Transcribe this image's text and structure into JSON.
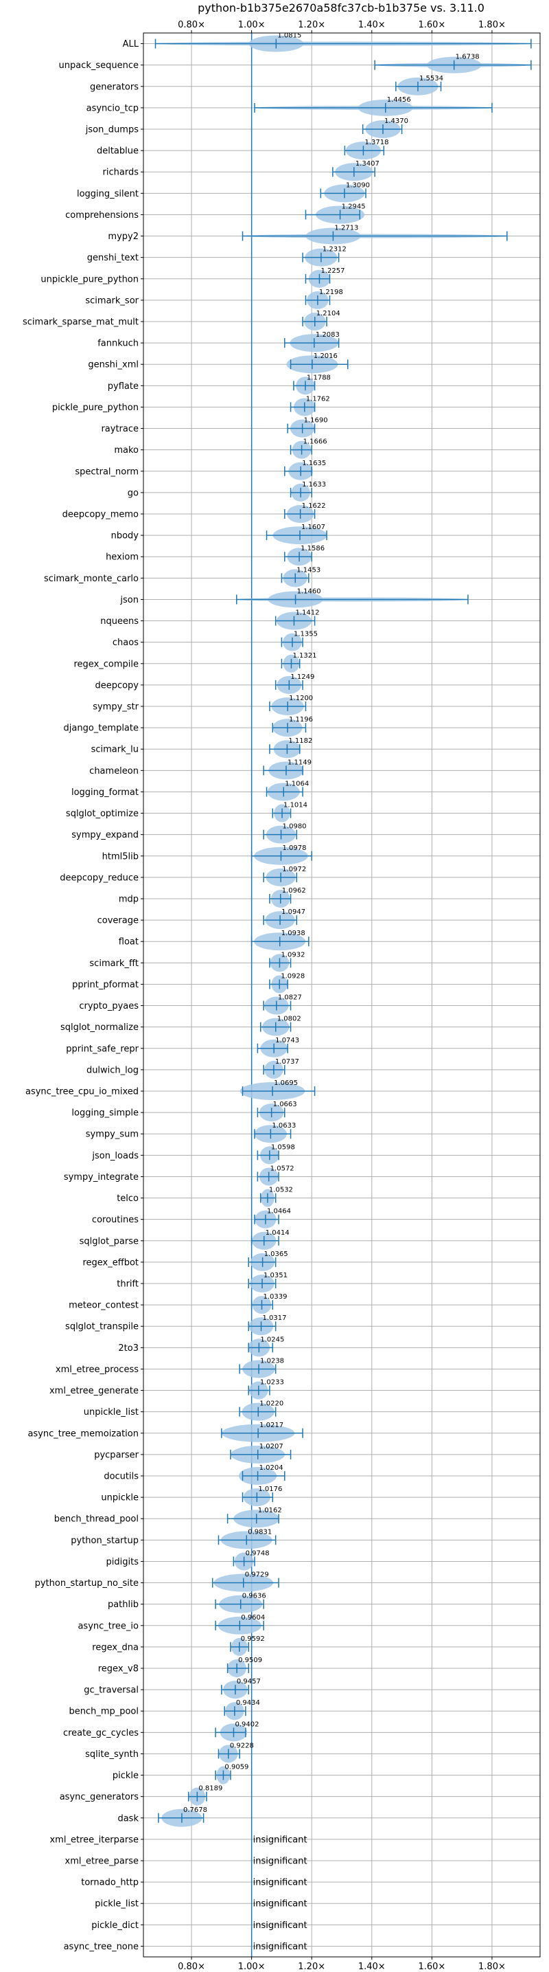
{
  "chart_data": {
    "type": "violin",
    "title": "python-b1b375e2670a58fc37cb-b1b375e vs. 3.11.0",
    "xlabel": "",
    "ylabel": "",
    "xlim": [
      0.64,
      1.96
    ],
    "x_ticks": [
      0.8,
      1.0,
      1.2,
      1.4,
      1.6,
      1.8
    ],
    "x_tick_labels": [
      "0.80×",
      "1.00×",
      "1.20×",
      "1.40×",
      "1.60×",
      "1.80×"
    ],
    "reference_line": 1.0,
    "grid": true,
    "colors": {
      "violin": "#a6c8e6",
      "line": "#1f77b4"
    },
    "insignificant_label": "insignificant",
    "benchmarks": [
      {
        "name": "ALL",
        "value": 1.0815,
        "label": "1.0815",
        "min": 0.68,
        "max": 1.93
      },
      {
        "name": "unpack_sequence",
        "value": 1.6738,
        "label": "1.6738",
        "min": 1.41,
        "max": 1.93
      },
      {
        "name": "generators",
        "value": 1.5534,
        "label": "1.5534",
        "min": 1.48,
        "max": 1.63
      },
      {
        "name": "asyncio_tcp",
        "value": 1.4456,
        "label": "1.4456",
        "min": 1.01,
        "max": 1.8
      },
      {
        "name": "json_dumps",
        "value": 1.437,
        "label": "1.4370",
        "min": 1.37,
        "max": 1.5
      },
      {
        "name": "deltablue",
        "value": 1.3718,
        "label": "1.3718",
        "min": 1.31,
        "max": 1.44
      },
      {
        "name": "richards",
        "value": 1.3407,
        "label": "1.3407",
        "min": 1.27,
        "max": 1.41
      },
      {
        "name": "logging_silent",
        "value": 1.309,
        "label": "1.3090",
        "min": 1.23,
        "max": 1.38
      },
      {
        "name": "comprehensions",
        "value": 1.2945,
        "label": "1.2945",
        "min": 1.18,
        "max": 1.36
      },
      {
        "name": "mypy2",
        "value": 1.2713,
        "label": "1.2713",
        "min": 0.97,
        "max": 1.85
      },
      {
        "name": "genshi_text",
        "value": 1.2312,
        "label": "1.2312",
        "min": 1.17,
        "max": 1.29
      },
      {
        "name": "unpickle_pure_python",
        "value": 1.2257,
        "label": "1.2257",
        "min": 1.18,
        "max": 1.26
      },
      {
        "name": "scimark_sor",
        "value": 1.2198,
        "label": "1.2198",
        "min": 1.18,
        "max": 1.26
      },
      {
        "name": "scimark_sparse_mat_mult",
        "value": 1.2104,
        "label": "1.2104",
        "min": 1.17,
        "max": 1.25
      },
      {
        "name": "fannkuch",
        "value": 1.2083,
        "label": "1.2083",
        "min": 1.11,
        "max": 1.29
      },
      {
        "name": "genshi_xml",
        "value": 1.2016,
        "label": "1.2016",
        "min": 1.13,
        "max": 1.32
      },
      {
        "name": "pyflate",
        "value": 1.1788,
        "label": "1.1788",
        "min": 1.14,
        "max": 1.21
      },
      {
        "name": "pickle_pure_python",
        "value": 1.1762,
        "label": "1.1762",
        "min": 1.13,
        "max": 1.21
      },
      {
        "name": "raytrace",
        "value": 1.169,
        "label": "1.1690",
        "min": 1.12,
        "max": 1.21
      },
      {
        "name": "mako",
        "value": 1.1666,
        "label": "1.1666",
        "min": 1.13,
        "max": 1.2
      },
      {
        "name": "spectral_norm",
        "value": 1.1635,
        "label": "1.1635",
        "min": 1.11,
        "max": 1.2
      },
      {
        "name": "go",
        "value": 1.1633,
        "label": "1.1633",
        "min": 1.13,
        "max": 1.2
      },
      {
        "name": "deepcopy_memo",
        "value": 1.1622,
        "label": "1.1622",
        "min": 1.11,
        "max": 1.21
      },
      {
        "name": "nbody",
        "value": 1.1607,
        "label": "1.1607",
        "min": 1.05,
        "max": 1.25
      },
      {
        "name": "hexiom",
        "value": 1.1586,
        "label": "1.1586",
        "min": 1.11,
        "max": 1.2
      },
      {
        "name": "scimark_monte_carlo",
        "value": 1.1453,
        "label": "1.1453",
        "min": 1.1,
        "max": 1.19
      },
      {
        "name": "json",
        "value": 1.146,
        "label": "1.1460",
        "min": 0.95,
        "max": 1.72
      },
      {
        "name": "nqueens",
        "value": 1.1412,
        "label": "1.1412",
        "min": 1.08,
        "max": 1.21
      },
      {
        "name": "chaos",
        "value": 1.1355,
        "label": "1.1355",
        "min": 1.1,
        "max": 1.17
      },
      {
        "name": "regex_compile",
        "value": 1.1321,
        "label": "1.1321",
        "min": 1.1,
        "max": 1.16
      },
      {
        "name": "deepcopy",
        "value": 1.1249,
        "label": "1.1249",
        "min": 1.08,
        "max": 1.17
      },
      {
        "name": "sympy_str",
        "value": 1.12,
        "label": "1.1200",
        "min": 1.06,
        "max": 1.18
      },
      {
        "name": "django_template",
        "value": 1.1196,
        "label": "1.1196",
        "min": 1.07,
        "max": 1.18
      },
      {
        "name": "scimark_lu",
        "value": 1.1182,
        "label": "1.1182",
        "min": 1.06,
        "max": 1.16
      },
      {
        "name": "chameleon",
        "value": 1.1149,
        "label": "1.1149",
        "min": 1.04,
        "max": 1.17
      },
      {
        "name": "logging_format",
        "value": 1.1064,
        "label": "1.1064",
        "min": 1.05,
        "max": 1.17
      },
      {
        "name": "sqlglot_optimize",
        "value": 1.1014,
        "label": "1.1014",
        "min": 1.07,
        "max": 1.13
      },
      {
        "name": "sympy_expand",
        "value": 1.098,
        "label": "1.0980",
        "min": 1.04,
        "max": 1.15
      },
      {
        "name": "html5lib",
        "value": 1.0978,
        "label": "1.0978",
        "min": 1.0,
        "max": 1.2
      },
      {
        "name": "deepcopy_reduce",
        "value": 1.0972,
        "label": "1.0972",
        "min": 1.04,
        "max": 1.15
      },
      {
        "name": "mdp",
        "value": 1.0962,
        "label": "1.0962",
        "min": 1.06,
        "max": 1.13
      },
      {
        "name": "coverage",
        "value": 1.0947,
        "label": "1.0947",
        "min": 1.04,
        "max": 1.15
      },
      {
        "name": "float",
        "value": 1.0938,
        "label": "1.0938",
        "min": 1.0,
        "max": 1.19
      },
      {
        "name": "scimark_fft",
        "value": 1.0932,
        "label": "1.0932",
        "min": 1.06,
        "max": 1.13
      },
      {
        "name": "pprint_pformat",
        "value": 1.0928,
        "label": "1.0928",
        "min": 1.06,
        "max": 1.12
      },
      {
        "name": "crypto_pyaes",
        "value": 1.0827,
        "label": "1.0827",
        "min": 1.04,
        "max": 1.13
      },
      {
        "name": "sqlglot_normalize",
        "value": 1.0802,
        "label": "1.0802",
        "min": 1.03,
        "max": 1.13
      },
      {
        "name": "pprint_safe_repr",
        "value": 1.0743,
        "label": "1.0743",
        "min": 1.02,
        "max": 1.12
      },
      {
        "name": "dulwich_log",
        "value": 1.0737,
        "label": "1.0737",
        "min": 1.04,
        "max": 1.11
      },
      {
        "name": "async_tree_cpu_io_mixed",
        "value": 1.0695,
        "label": "1.0695",
        "min": 0.97,
        "max": 1.21
      },
      {
        "name": "logging_simple",
        "value": 1.0663,
        "label": "1.0663",
        "min": 1.02,
        "max": 1.11
      },
      {
        "name": "sympy_sum",
        "value": 1.0633,
        "label": "1.0633",
        "min": 1.01,
        "max": 1.13
      },
      {
        "name": "json_loads",
        "value": 1.0598,
        "label": "1.0598",
        "min": 1.02,
        "max": 1.09
      },
      {
        "name": "sympy_integrate",
        "value": 1.0572,
        "label": "1.0572",
        "min": 1.02,
        "max": 1.09
      },
      {
        "name": "telco",
        "value": 1.0532,
        "label": "1.0532",
        "min": 1.03,
        "max": 1.08
      },
      {
        "name": "coroutines",
        "value": 1.0464,
        "label": "1.0464",
        "min": 1.01,
        "max": 1.09
      },
      {
        "name": "sqlglot_parse",
        "value": 1.0414,
        "label": "1.0414",
        "min": 1.0,
        "max": 1.09
      },
      {
        "name": "regex_effbot",
        "value": 1.0365,
        "label": "1.0365",
        "min": 0.99,
        "max": 1.08
      },
      {
        "name": "thrift",
        "value": 1.0351,
        "label": "1.0351",
        "min": 0.99,
        "max": 1.08
      },
      {
        "name": "meteor_contest",
        "value": 1.0339,
        "label": "1.0339",
        "min": 1.0,
        "max": 1.07
      },
      {
        "name": "sqlglot_transpile",
        "value": 1.0317,
        "label": "1.0317",
        "min": 0.99,
        "max": 1.08
      },
      {
        "name": "2to3",
        "value": 1.0245,
        "label": "1.0245",
        "min": 0.99,
        "max": 1.07
      },
      {
        "name": "xml_etree_process",
        "value": 1.0238,
        "label": "1.0238",
        "min": 0.96,
        "max": 1.08
      },
      {
        "name": "xml_etree_generate",
        "value": 1.0233,
        "label": "1.0233",
        "min": 0.99,
        "max": 1.06
      },
      {
        "name": "unpickle_list",
        "value": 1.022,
        "label": "1.0220",
        "min": 0.96,
        "max": 1.08
      },
      {
        "name": "async_tree_memoization",
        "value": 1.0217,
        "label": "1.0217",
        "min": 0.9,
        "max": 1.17
      },
      {
        "name": "pycparser",
        "value": 1.0207,
        "label": "1.0207",
        "min": 0.93,
        "max": 1.13
      },
      {
        "name": "docutils",
        "value": 1.0204,
        "label": "1.0204",
        "min": 0.97,
        "max": 1.11
      },
      {
        "name": "unpickle",
        "value": 1.0176,
        "label": "1.0176",
        "min": 0.97,
        "max": 1.07
      },
      {
        "name": "bench_thread_pool",
        "value": 1.0162,
        "label": "1.0162",
        "min": 0.92,
        "max": 1.09
      },
      {
        "name": "python_startup",
        "value": 0.9831,
        "label": "0.9831",
        "min": 0.89,
        "max": 1.08
      },
      {
        "name": "pidigits",
        "value": 0.9748,
        "label": "0.9748",
        "min": 0.94,
        "max": 1.01
      },
      {
        "name": "python_startup_no_site",
        "value": 0.9729,
        "label": "0.9729",
        "min": 0.87,
        "max": 1.09
      },
      {
        "name": "pathlib",
        "value": 0.9636,
        "label": "0.9636",
        "min": 0.88,
        "max": 1.04
      },
      {
        "name": "async_tree_io",
        "value": 0.9604,
        "label": "0.9604",
        "min": 0.88,
        "max": 1.04
      },
      {
        "name": "regex_dna",
        "value": 0.9592,
        "label": "0.9592",
        "min": 0.93,
        "max": 0.99
      },
      {
        "name": "regex_v8",
        "value": 0.9509,
        "label": "0.9509",
        "min": 0.92,
        "max": 0.99
      },
      {
        "name": "gc_traversal",
        "value": 0.9457,
        "label": "0.9457",
        "min": 0.9,
        "max": 0.99
      },
      {
        "name": "bench_mp_pool",
        "value": 0.9434,
        "label": "0.9434",
        "min": 0.91,
        "max": 0.98
      },
      {
        "name": "create_gc_cycles",
        "value": 0.9402,
        "label": "0.9402",
        "min": 0.88,
        "max": 0.98
      },
      {
        "name": "sqlite_synth",
        "value": 0.9228,
        "label": "0.9228",
        "min": 0.89,
        "max": 0.96
      },
      {
        "name": "pickle",
        "value": 0.9059,
        "label": "0.9059",
        "min": 0.88,
        "max": 0.93
      },
      {
        "name": "async_generators",
        "value": 0.8189,
        "label": "0.8189",
        "min": 0.79,
        "max": 0.85
      },
      {
        "name": "dask",
        "value": 0.7678,
        "label": "0.7678",
        "min": 0.69,
        "max": 0.84
      },
      {
        "name": "xml_etree_iterparse",
        "value": null,
        "label": "",
        "min": null,
        "max": null
      },
      {
        "name": "xml_etree_parse",
        "value": null,
        "label": "",
        "min": null,
        "max": null
      },
      {
        "name": "tornado_http",
        "value": null,
        "label": "",
        "min": null,
        "max": null
      },
      {
        "name": "pickle_list",
        "value": null,
        "label": "",
        "min": null,
        "max": null
      },
      {
        "name": "pickle_dict",
        "value": null,
        "label": "",
        "min": null,
        "max": null
      },
      {
        "name": "async_tree_none",
        "value": null,
        "label": "",
        "min": null,
        "max": null
      }
    ]
  }
}
